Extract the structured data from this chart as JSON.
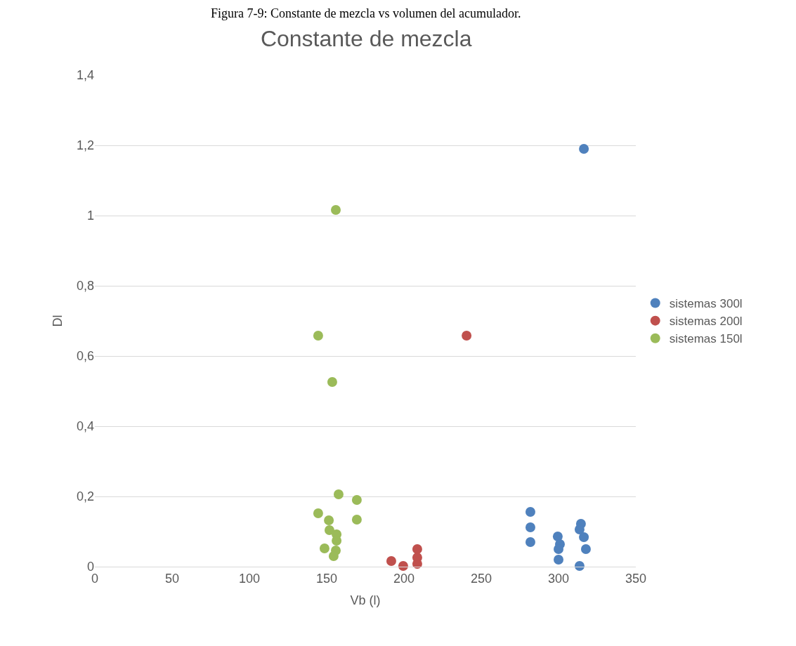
{
  "chart_data": {
    "type": "scatter",
    "title": "Constante de mezcla",
    "xlabel": "Vb (l)",
    "ylabel": "Dl",
    "annotations": [
      "Figura 7-9: Constante de mezcla vs volumen del acumulador."
    ],
    "xlim": [
      0,
      350
    ],
    "xticks": [
      0,
      50,
      100,
      150,
      200,
      250,
      300,
      350
    ],
    "ylim": [
      0,
      1.4
    ],
    "yticks": [
      {
        "value": 0,
        "label": "0"
      },
      {
        "value": 0.2,
        "label": "0,2"
      },
      {
        "value": 0.4,
        "label": "0,4"
      },
      {
        "value": 0.6,
        "label": "0,6"
      },
      {
        "value": 0.8,
        "label": "0,8"
      },
      {
        "value": 1,
        "label": "1"
      },
      {
        "value": 1.2,
        "label": "1,2"
      },
      {
        "value": 1.4,
        "label": "1,4"
      }
    ],
    "grid": "y",
    "legend": "right",
    "marker": "circle",
    "series": [
      {
        "name": "sistemas 300l",
        "color": "#4f81bd",
        "x": [
          316.4,
          281.8,
          281.8,
          281.8,
          299.5,
          300.9,
          300,
          300,
          314.5,
          313.6,
          316.4,
          317.7,
          313.6
        ],
        "values": [
          1.19,
          0.156,
          0.112,
          0.07,
          0.086,
          0.064,
          0.05,
          0.02,
          0.122,
          0.106,
          0.084,
          0.05,
          0.002
        ]
      },
      {
        "name": "sistemas 200l",
        "color": "#c0504d",
        "x": [
          240.5,
          191.8,
          199.5,
          208.6,
          208.6,
          208.6
        ],
        "values": [
          0.658,
          0.016,
          0.002,
          0.05,
          0.026,
          0.008
        ]
      },
      {
        "name": "sistemas 150l",
        "color": "#9bbb59",
        "x": [
          155.9,
          144.5,
          153.6,
          157.7,
          169.5,
          144.5,
          151.4,
          169.5,
          151.8,
          156.4,
          156.4,
          148.6,
          155.9,
          154.5
        ],
        "values": [
          1.016,
          0.658,
          0.526,
          0.206,
          0.19,
          0.152,
          0.132,
          0.134,
          0.104,
          0.092,
          0.074,
          0.052,
          0.046,
          0.03
        ]
      }
    ]
  }
}
